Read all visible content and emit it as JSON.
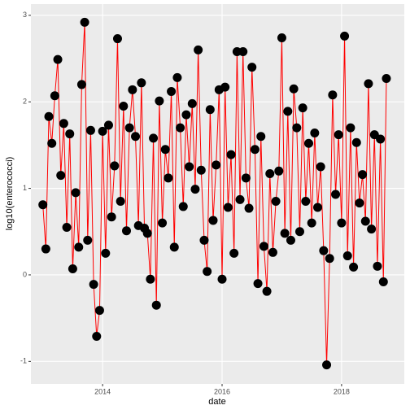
{
  "chart_data": {
    "type": "line",
    "x_label": "date",
    "y_label": "log10(enterococci)",
    "xlim": [
      2012.8,
      2019.05
    ],
    "xticks": [
      2014,
      2016,
      2018
    ],
    "ylim": [
      -1.26,
      3.13
    ],
    "yticks": [
      -1,
      0,
      1,
      2,
      3
    ],
    "grid": true,
    "x": [
      2013.0,
      2013.05,
      2013.1,
      2013.15,
      2013.2,
      2013.25,
      2013.3,
      2013.35,
      2013.4,
      2013.45,
      2013.5,
      2013.55,
      2013.6,
      2013.65,
      2013.7,
      2013.75,
      2013.8,
      2013.85,
      2013.9,
      2013.95,
      2014.0,
      2014.05,
      2014.1,
      2014.15,
      2014.2,
      2014.25,
      2014.3,
      2014.35,
      2014.4,
      2014.45,
      2014.5,
      2014.55,
      2014.6,
      2014.65,
      2014.7,
      2014.75,
      2014.8,
      2014.85,
      2014.9,
      2014.95,
      2015.0,
      2015.05,
      2015.1,
      2015.15,
      2015.2,
      2015.25,
      2015.3,
      2015.35,
      2015.4,
      2015.45,
      2015.5,
      2015.55,
      2015.6,
      2015.65,
      2015.7,
      2015.75,
      2015.8,
      2015.85,
      2015.9,
      2015.95,
      2016.0,
      2016.05,
      2016.1,
      2016.15,
      2016.2,
      2016.25,
      2016.3,
      2016.35,
      2016.4,
      2016.45,
      2016.5,
      2016.55,
      2016.6,
      2016.65,
      2016.7,
      2016.75,
      2016.8,
      2016.85,
      2016.9,
      2016.95,
      2017.0,
      2017.05,
      2017.1,
      2017.15,
      2017.2,
      2017.25,
      2017.3,
      2017.35,
      2017.4,
      2017.45,
      2017.5,
      2017.55,
      2017.6,
      2017.65,
      2017.7,
      2017.75,
      2017.8,
      2017.85,
      2017.9,
      2017.95,
      2018.0,
      2018.05,
      2018.1,
      2018.15,
      2018.2,
      2018.25,
      2018.3,
      2018.35,
      2018.4,
      2018.45,
      2018.5,
      2018.55,
      2018.6,
      2018.65,
      2018.7,
      2018.75
    ],
    "series": [
      {
        "color": "#ff0000",
        "point_color": "#000000",
        "values": [
          0.81,
          0.3,
          1.83,
          1.52,
          2.07,
          2.49,
          1.15,
          1.75,
          0.55,
          1.63,
          0.07,
          0.95,
          0.32,
          2.2,
          2.92,
          0.4,
          1.67,
          -0.11,
          -0.71,
          -0.41,
          1.66,
          0.25,
          1.73,
          0.67,
          1.26,
          2.73,
          0.85,
          1.95,
          0.51,
          1.7,
          2.14,
          1.6,
          0.57,
          2.22,
          0.54,
          0.48,
          -0.05,
          1.58,
          -0.35,
          2.01,
          0.6,
          1.45,
          1.12,
          2.12,
          0.32,
          2.28,
          1.7,
          0.79,
          1.85,
          1.25,
          1.98,
          0.99,
          2.6,
          1.21,
          0.4,
          0.04,
          1.91,
          0.63,
          1.27,
          2.14,
          -0.05,
          2.17,
          0.78,
          1.39,
          0.25,
          2.58,
          0.87,
          2.58,
          1.12,
          0.77,
          2.4,
          1.45,
          -0.1,
          1.6,
          0.33,
          -0.19,
          1.17,
          0.26,
          0.85,
          1.2,
          2.74,
          0.48,
          1.89,
          0.4,
          2.15,
          1.7,
          0.5,
          1.93,
          0.85,
          1.52,
          0.6,
          1.64,
          0.78,
          1.25,
          0.28,
          -1.04,
          0.19,
          2.08,
          0.93,
          1.62,
          0.6,
          2.76,
          0.22,
          1.7,
          0.09,
          1.53,
          0.83,
          1.16,
          0.62,
          2.21,
          0.53,
          1.62,
          0.1,
          1.57,
          -0.08,
          2.27
        ]
      }
    ]
  }
}
